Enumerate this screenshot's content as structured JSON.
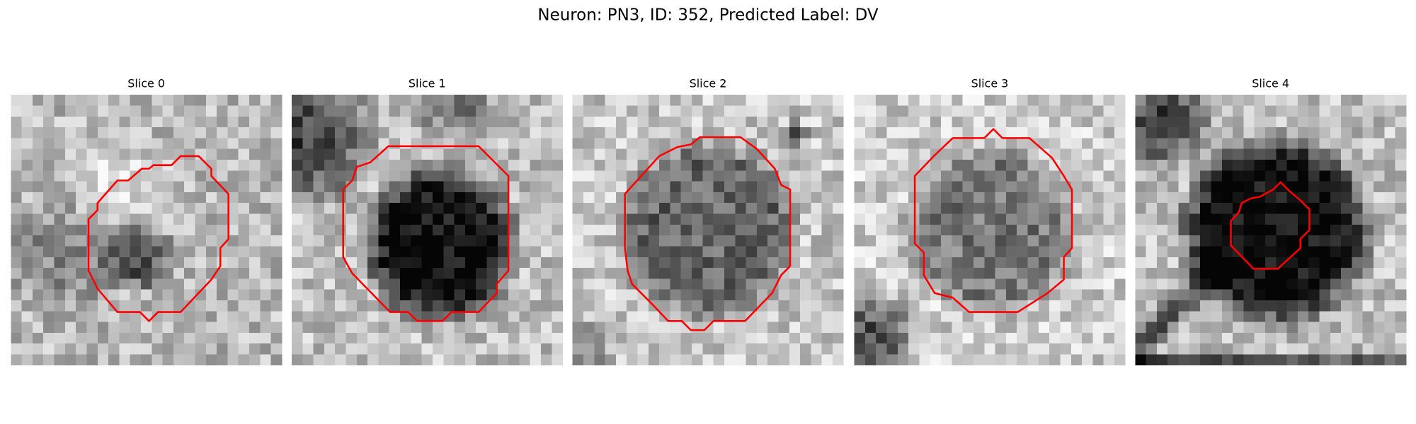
{
  "title": "Neuron: PN3, ID: 352, Predicted Label: DV",
  "panels": [
    {
      "title": "Slice 0"
    },
    {
      "title": "Slice 1"
    },
    {
      "title": "Slice 2"
    },
    {
      "title": "Slice 3"
    },
    {
      "title": "Slice 4"
    }
  ]
}
